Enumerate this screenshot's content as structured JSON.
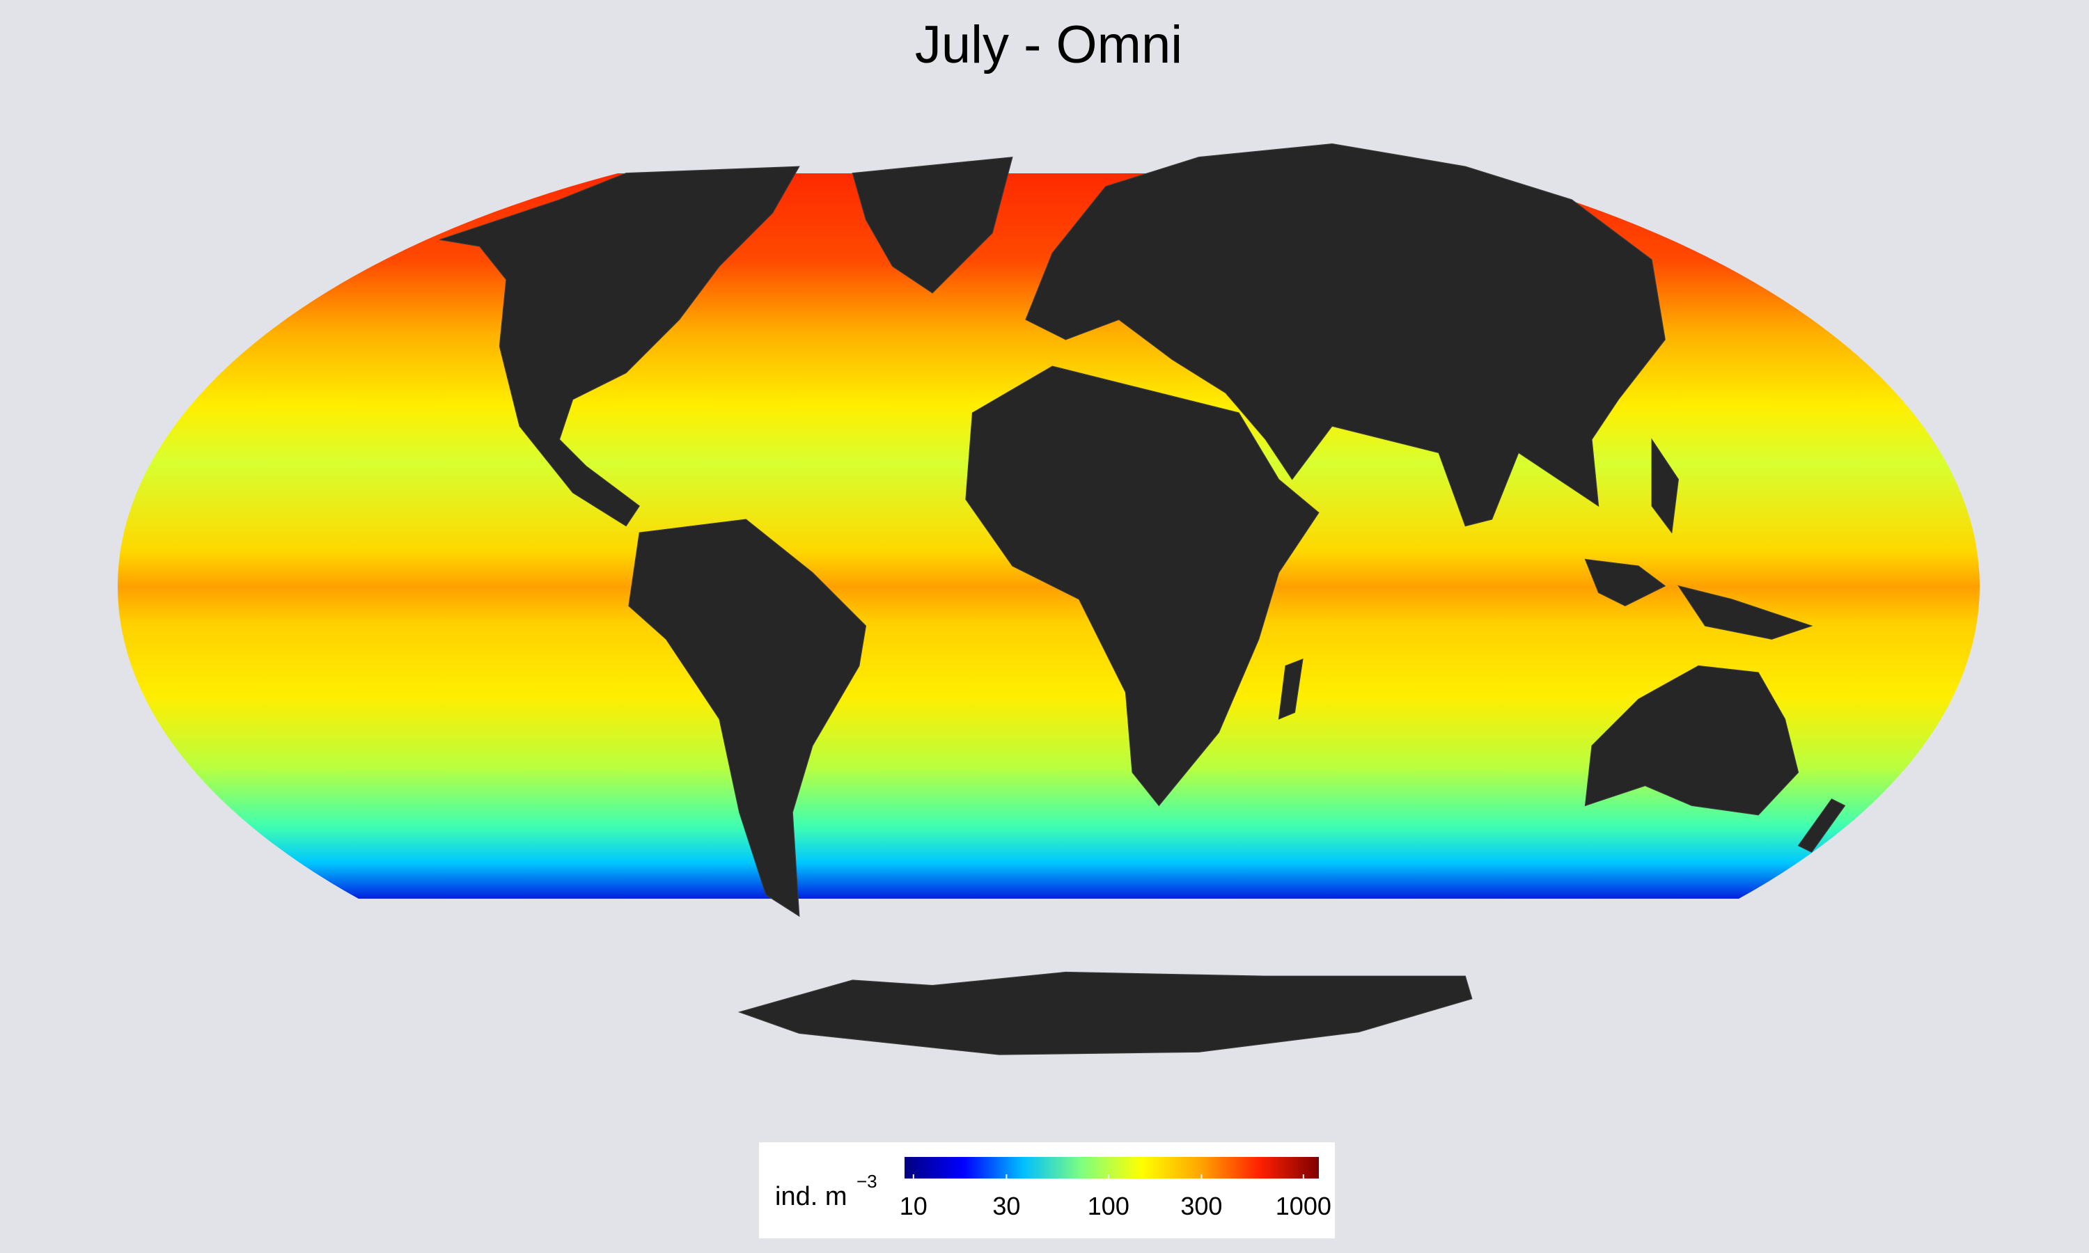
{
  "title": "July - Omni",
  "colorbar": {
    "label": "ind. m",
    "label_exponent": "−3",
    "scale": "log",
    "lim": [
      9,
      1200
    ],
    "ticks": [
      10,
      30,
      100,
      300,
      1000
    ],
    "colors": [
      "#00007f",
      "#0000ff",
      "#00bfff",
      "#7fff7f",
      "#ffff00",
      "#ffa500",
      "#ff2000",
      "#7f0000"
    ]
  }
}
